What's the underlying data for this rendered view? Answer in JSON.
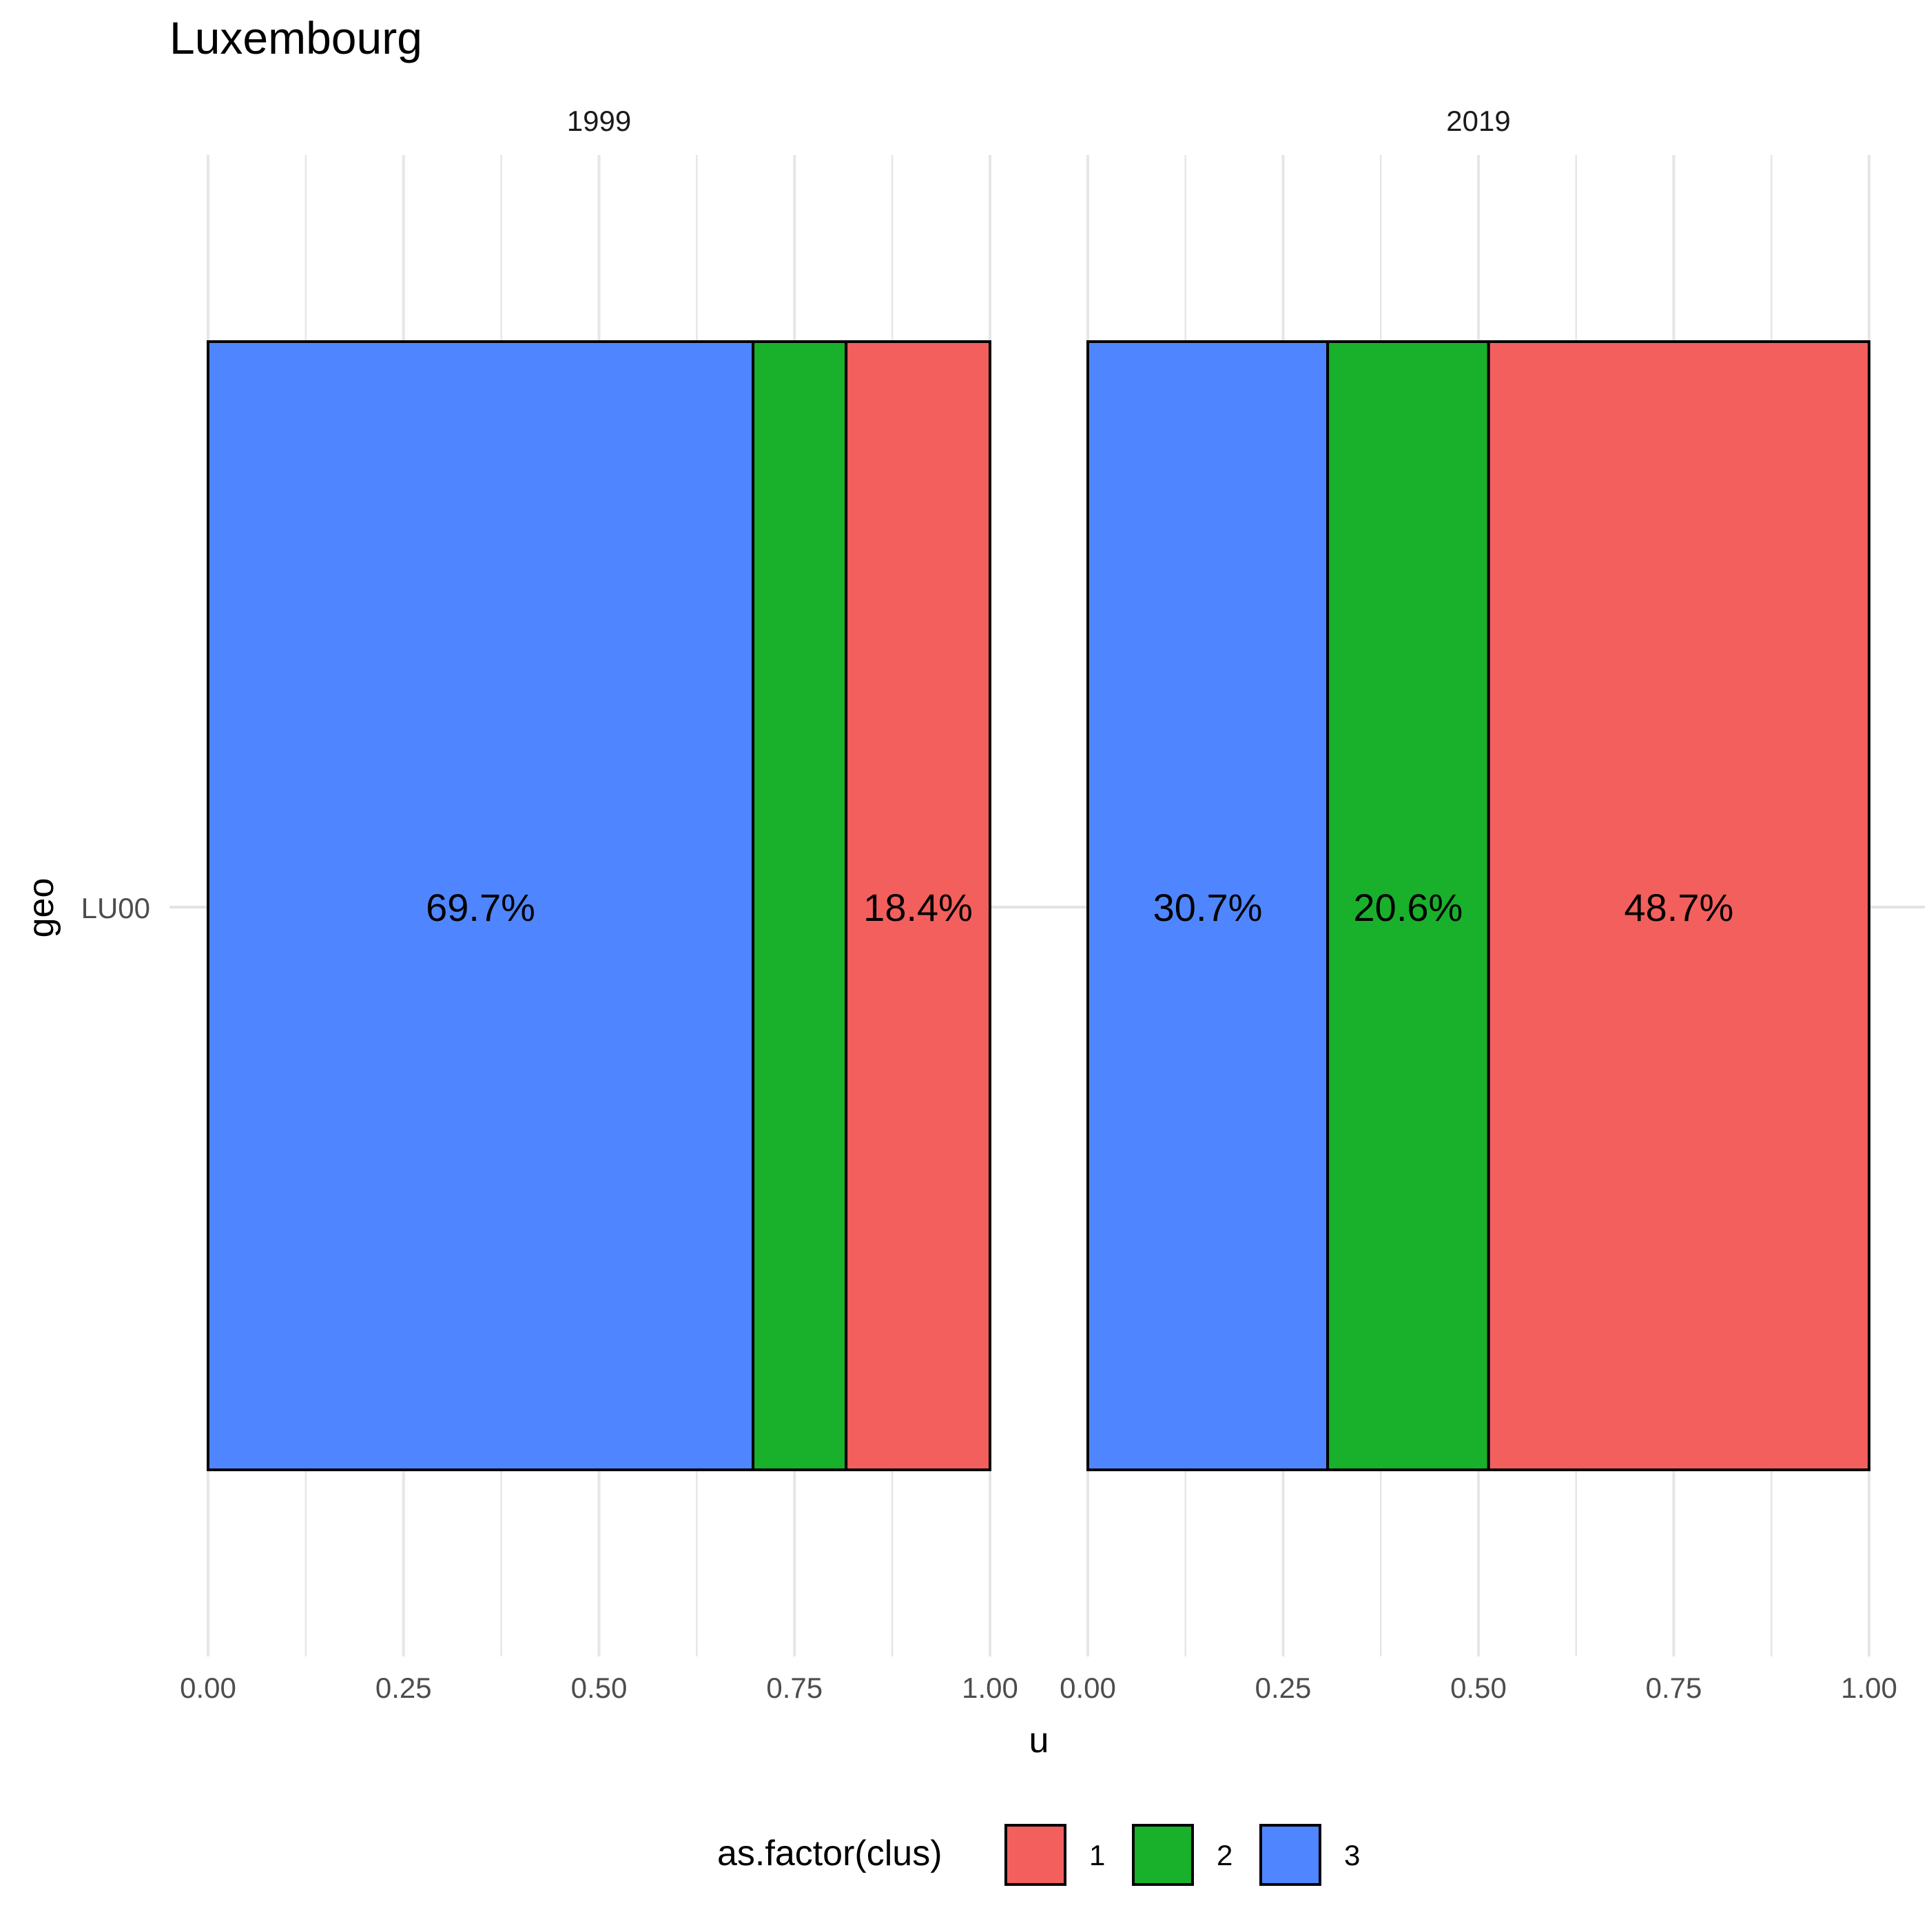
{
  "chart_data": {
    "type": "bar",
    "orientation": "horizontal",
    "stacked": true,
    "title": "Luxembourg",
    "xlabel": "u",
    "ylabel": "geo",
    "categories": [
      "LU00"
    ],
    "xlim": [
      0,
      1
    ],
    "x_ticks": [
      "0.00",
      "0.25",
      "0.50",
      "0.75",
      "1.00"
    ],
    "grid": true,
    "legend": {
      "title": "as.factor(clus)",
      "position": "bottom",
      "items": [
        {
          "label": "1",
          "color": "#F25F5C"
        },
        {
          "label": "2",
          "color": "#19B02B"
        },
        {
          "label": "3",
          "color": "#4F86FF"
        }
      ]
    },
    "facets": [
      {
        "label": "1999",
        "segments": [
          {
            "clus": "3",
            "value": 0.697,
            "label": "69.7%",
            "color": "#4F86FF"
          },
          {
            "clus": "2",
            "value": 0.119,
            "label": "",
            "color": "#19B02B"
          },
          {
            "clus": "1",
            "value": 0.184,
            "label": "18.4%",
            "color": "#F25F5C"
          }
        ]
      },
      {
        "label": "2019",
        "segments": [
          {
            "clus": "3",
            "value": 0.307,
            "label": "30.7%",
            "color": "#4F86FF"
          },
          {
            "clus": "2",
            "value": 0.206,
            "label": "20.6%",
            "color": "#19B02B"
          },
          {
            "clus": "1",
            "value": 0.487,
            "label": "48.7%",
            "color": "#F25F5C"
          }
        ]
      }
    ]
  }
}
